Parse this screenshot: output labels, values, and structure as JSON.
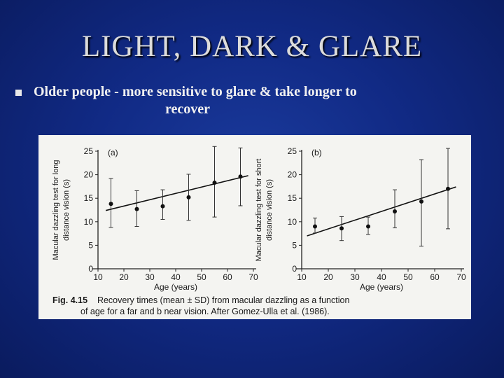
{
  "slide": {
    "title": "LIGHT, DARK & GLARE",
    "bullet_line1": "Older people - more sensitive to glare & take longer to",
    "bullet_line2": "recover"
  },
  "figure": {
    "caption_prefix": "Fig. 4.15",
    "caption_line1": "Recovery times (mean ± SD) from macular dazzling as a function",
    "caption_line2": "of age for a far and b near vision. After Gomez-Ulla et al. (1986)."
  },
  "chart_data": [
    {
      "type": "scatter",
      "panel_label": "(a)",
      "xlabel": "Age (years)",
      "ylabel_line1": "Macular dazzling test for long",
      "ylabel_line2": "distance vision (s)",
      "xlim": [
        10,
        70
      ],
      "ylim": [
        0,
        25
      ],
      "xticks": [
        10,
        20,
        30,
        40,
        50,
        60,
        70
      ],
      "yticks": [
        0,
        5,
        10,
        15,
        20,
        25
      ],
      "points": [
        {
          "x": 15,
          "y": 13.8,
          "sd_low": 8.8,
          "sd_high": 19.2
        },
        {
          "x": 25,
          "y": 12.7,
          "sd_low": 9.0,
          "sd_high": 16.6
        },
        {
          "x": 35,
          "y": 13.3,
          "sd_low": 10.5,
          "sd_high": 16.8
        },
        {
          "x": 45,
          "y": 15.2,
          "sd_low": 10.3,
          "sd_high": 20.1
        },
        {
          "x": 55,
          "y": 18.3,
          "sd_low": 11.0,
          "sd_high": 26.0
        },
        {
          "x": 65,
          "y": 19.6,
          "sd_low": 13.4,
          "sd_high": 25.7
        }
      ],
      "trend": {
        "x": [
          13,
          68
        ],
        "y": [
          12.4,
          19.8
        ]
      }
    },
    {
      "type": "scatter",
      "panel_label": "(b)",
      "xlabel": "Age (years)",
      "ylabel_line1": "Macular dazzling test for short",
      "ylabel_line2": "distance vision (s)",
      "xlim": [
        10,
        70
      ],
      "ylim": [
        0,
        25
      ],
      "xticks": [
        10,
        20,
        30,
        40,
        50,
        60,
        70
      ],
      "yticks": [
        0,
        5,
        10,
        15,
        20,
        25
      ],
      "points": [
        {
          "x": 15,
          "y": 9.0,
          "sd_low": 7.6,
          "sd_high": 10.8
        },
        {
          "x": 25,
          "y": 8.6,
          "sd_low": 6.0,
          "sd_high": 11.1
        },
        {
          "x": 35,
          "y": 9.0,
          "sd_low": 7.3,
          "sd_high": 11.0
        },
        {
          "x": 45,
          "y": 12.2,
          "sd_low": 8.7,
          "sd_high": 16.8
        },
        {
          "x": 55,
          "y": 14.3,
          "sd_low": 4.8,
          "sd_high": 23.2
        },
        {
          "x": 65,
          "y": 17.0,
          "sd_low": 8.5,
          "sd_high": 25.6
        }
      ],
      "trend": {
        "x": [
          12,
          68
        ],
        "y": [
          7.0,
          17.4
        ]
      }
    }
  ]
}
